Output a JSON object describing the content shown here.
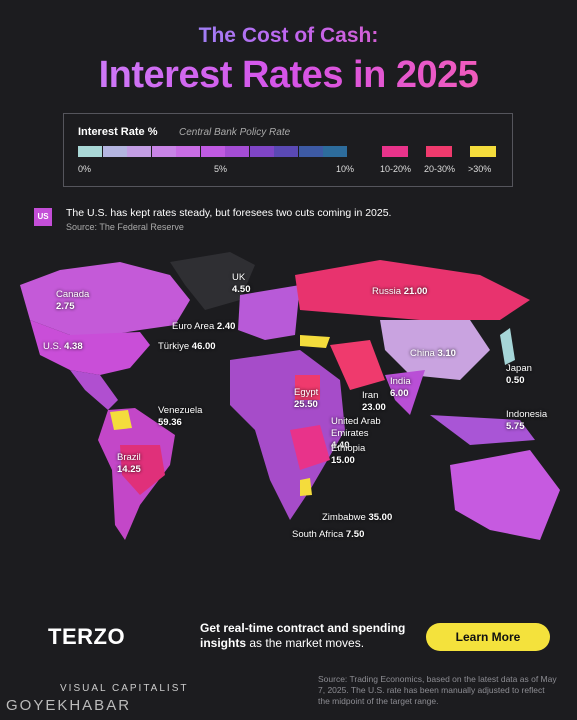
{
  "header": {
    "kicker": "The Cost of Cash:",
    "title": "Interest Rates in 2025"
  },
  "legend": {
    "title": "Interest Rate %",
    "subtitle": "Central Bank Policy Rate",
    "scale_labels": [
      "0%",
      "5%",
      "10%"
    ],
    "categories": [
      {
        "label": "10-20%",
        "color": "#e8338a"
      },
      {
        "label": "20-30%",
        "color": "#ef3a6d"
      },
      {
        "label": ">30%",
        "color": "#f4dc3c"
      }
    ]
  },
  "callout": {
    "tag": "US",
    "text": "The U.S. has kept rates steady, but foresees two cuts coming in 2025.",
    "source": "Source: The Federal Reserve"
  },
  "countries": [
    {
      "name": "Canada",
      "rate": "2.75"
    },
    {
      "name": "U.S.",
      "rate": "4.38"
    },
    {
      "name": "UK",
      "rate": "4.50"
    },
    {
      "name": "Russia",
      "rate": "21.00"
    },
    {
      "name": "Euro Area",
      "rate": "2.40"
    },
    {
      "name": "Türkiye",
      "rate": "46.00"
    },
    {
      "name": "China",
      "rate": "3.10"
    },
    {
      "name": "Japan",
      "rate": "0.50"
    },
    {
      "name": "India",
      "rate": "6.00"
    },
    {
      "name": "Egypt",
      "rate": "25.50"
    },
    {
      "name": "Iran",
      "rate": "23.00"
    },
    {
      "name": "Venezuela",
      "rate": "59.36"
    },
    {
      "name": "United Arab Emirates",
      "rate": "4.40"
    },
    {
      "name": "Indonesia",
      "rate": "5.75"
    },
    {
      "name": "Ethiopia",
      "rate": "15.00"
    },
    {
      "name": "Brazil",
      "rate": "14.25"
    },
    {
      "name": "Zimbabwe",
      "rate": "35.00"
    },
    {
      "name": "South Africa",
      "rate": "7.50"
    }
  ],
  "footer": {
    "brand": "TERZO",
    "cta_bold_1": "Get real-time contract and spending",
    "cta_bold_2": "insights",
    "cta_rest": "as the market moves.",
    "button": "Learn More",
    "source": "Source: Trading Economics, based on the latest data as of May 7, 2025. The U.S. rate has been manually adjusted to reflect the midpoint of the target range.",
    "publisher": "VISUAL CAPITALIST",
    "watermark": "GOYEKHABAR"
  }
}
